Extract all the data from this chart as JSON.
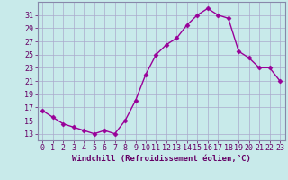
{
  "x": [
    0,
    1,
    2,
    3,
    4,
    5,
    6,
    7,
    8,
    9,
    10,
    11,
    12,
    13,
    14,
    15,
    16,
    17,
    18,
    19,
    20,
    21,
    22,
    23
  ],
  "y": [
    16.5,
    15.5,
    14.5,
    14.0,
    13.5,
    13.0,
    13.5,
    13.0,
    15.0,
    18.0,
    22.0,
    25.0,
    26.5,
    27.5,
    29.5,
    31.0,
    32.0,
    31.0,
    30.5,
    25.5,
    24.5,
    23.0,
    23.0,
    21.0
  ],
  "line_color": "#990099",
  "marker": "D",
  "marker_size": 2.5,
  "linewidth": 1.0,
  "xlabel": "Windchill (Refroidissement éolien,°C)",
  "xlim": [
    -0.5,
    23.5
  ],
  "ylim": [
    12,
    33
  ],
  "yticks": [
    13,
    15,
    17,
    19,
    21,
    23,
    25,
    27,
    29,
    31
  ],
  "xticks": [
    0,
    1,
    2,
    3,
    4,
    5,
    6,
    7,
    8,
    9,
    10,
    11,
    12,
    13,
    14,
    15,
    16,
    17,
    18,
    19,
    20,
    21,
    22,
    23
  ],
  "bg_color": "#c8eaea",
  "grid_color": "#aaaacc",
  "tick_color": "#660066",
  "label_color": "#660066",
  "xlabel_fontsize": 6.5,
  "tick_fontsize": 6.0,
  "spine_color": "#8888aa"
}
